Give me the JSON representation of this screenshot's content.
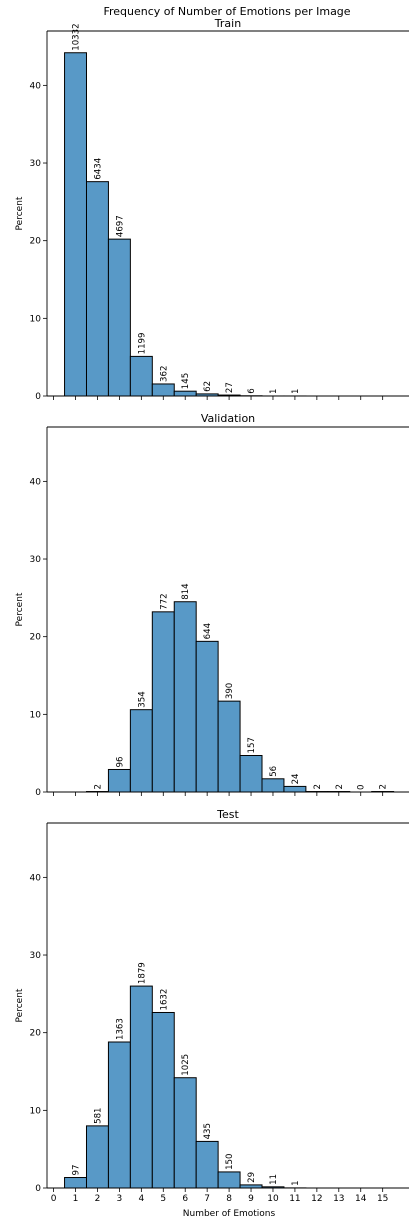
{
  "figure": {
    "suptitle": "Frequency of Number of Emotions per Image",
    "xlabel": "Number of Emotions",
    "bar_color": "#5899c7",
    "edge_color": "#000000"
  },
  "chart_data": [
    {
      "type": "bar",
      "title": "Train",
      "xlabel": "",
      "ylabel": "Percent",
      "ylim": [
        0,
        47
      ],
      "yticks": [
        0,
        10,
        20,
        30,
        40
      ],
      "categories": [
        1,
        2,
        3,
        4,
        5,
        6,
        7,
        8,
        9,
        10,
        11,
        12,
        13,
        14,
        15
      ],
      "values": [
        44.2,
        27.6,
        20.2,
        5.1,
        1.55,
        0.62,
        0.27,
        0.12,
        0.03,
        0.004,
        0.004,
        0,
        0,
        0,
        0
      ],
      "labels": [
        "10332",
        "6434",
        "4697",
        "1199",
        "362",
        "145",
        "62",
        "27",
        "6",
        "1",
        "1",
        "",
        "",
        "",
        ""
      ],
      "grid": false
    },
    {
      "type": "bar",
      "title": "Validation",
      "xlabel": "",
      "ylabel": "Percent",
      "ylim": [
        0,
        47
      ],
      "yticks": [
        0,
        10,
        20,
        30,
        40
      ],
      "categories": [
        1,
        2,
        3,
        4,
        5,
        6,
        7,
        8,
        9,
        10,
        11,
        12,
        13,
        14,
        15
      ],
      "values": [
        0,
        0.06,
        2.9,
        10.6,
        23.2,
        24.5,
        19.4,
        11.7,
        4.7,
        1.7,
        0.72,
        0.06,
        0.06,
        0,
        0.06
      ],
      "labels": [
        "",
        "2",
        "96",
        "354",
        "772",
        "814",
        "644",
        "390",
        "157",
        "56",
        "24",
        "2",
        "2",
        "0",
        "2"
      ],
      "grid": false
    },
    {
      "type": "bar",
      "title": "Test",
      "xlabel": "Number of Emotions",
      "ylabel": "Percent",
      "ylim": [
        0,
        47
      ],
      "yticks": [
        0,
        10,
        20,
        30,
        40
      ],
      "xticks": [
        "0",
        "1",
        "2",
        "3",
        "4",
        "5",
        "6",
        "7",
        "8",
        "9",
        "10",
        "11",
        "12",
        "13",
        "14",
        "15"
      ],
      "categories": [
        1,
        2,
        3,
        4,
        5,
        6,
        7,
        8,
        9,
        10,
        11,
        12,
        13,
        14,
        15
      ],
      "values": [
        1.35,
        8.0,
        18.8,
        26.0,
        22.6,
        14.2,
        6.0,
        2.07,
        0.4,
        0.15,
        0.014,
        0,
        0,
        0,
        0
      ],
      "labels": [
        "97",
        "581",
        "1363",
        "1879",
        "1632",
        "1025",
        "435",
        "150",
        "29",
        "11",
        "1",
        "",
        "",
        "",
        ""
      ],
      "grid": false
    }
  ]
}
